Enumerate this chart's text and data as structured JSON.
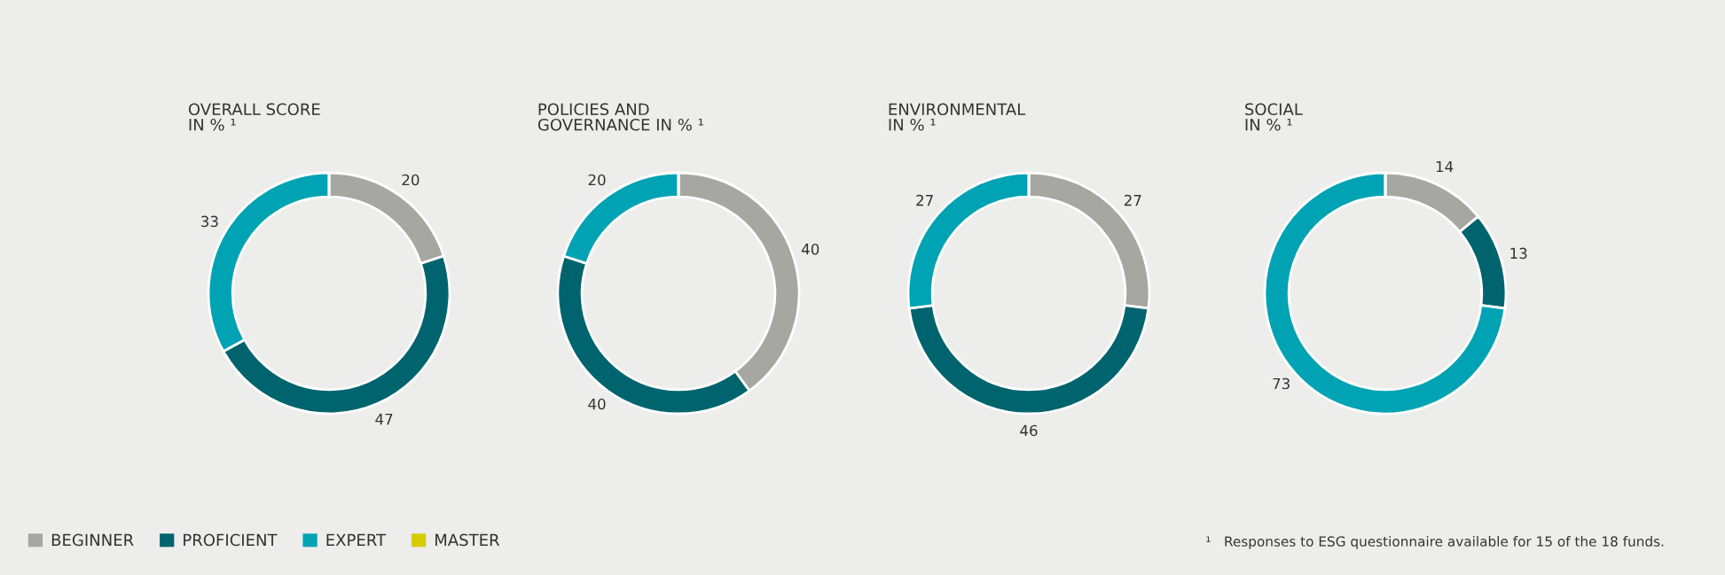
{
  "chart_data": [
    {
      "type": "donut",
      "title": "OVERALL SCORE\nIN % ¹",
      "categories": [
        "BEGINNER",
        "PROFICIENT",
        "EXPERT",
        "MASTER"
      ],
      "values": [
        20,
        47,
        33,
        0
      ],
      "colors": [
        "#a6a6a2",
        "#00646e",
        "#00a3b3",
        "#d6cc00"
      ],
      "value_labels": [
        "20",
        "47",
        "33",
        null
      ],
      "legend": "bottom left"
    },
    {
      "type": "donut",
      "title": "POLICIES AND\nGOVERNANCE IN % ¹",
      "categories": [
        null,
        null,
        null,
        null
      ],
      "values": [
        40,
        40,
        20,
        0
      ],
      "colors": [
        "#a6a6a2",
        "#00646e",
        "#00a3b3",
        "#d6cc00"
      ],
      "value_labels": [
        "40",
        "40",
        "20",
        null
      ]
    },
    {
      "type": "donut",
      "title": "ENVIRONMENTAL\nIN % ¹",
      "categories": [
        null,
        null,
        null,
        null
      ],
      "values": [
        27,
        46,
        27,
        0
      ],
      "colors": [
        "#a6a6a2",
        "#00646e",
        "#00a3b3",
        "#d6cc00"
      ],
      "value_labels": [
        "27",
        "46",
        "27",
        null
      ]
    },
    {
      "type": "donut",
      "title": "SOCIAL\nIN % ¹",
      "categories": [
        null,
        null,
        null,
        null
      ],
      "values": [
        14,
        13,
        73,
        0
      ],
      "colors": [
        "#a6a6a2",
        "#00646e",
        "#00a3b3",
        "#d6cc00"
      ],
      "value_labels": [
        "14",
        "13",
        "73",
        null
      ],
      "annotations": [
        "¹   Responses to ESG questionnaire available for 15 of the 18 funds."
      ]
    }
  ]
}
